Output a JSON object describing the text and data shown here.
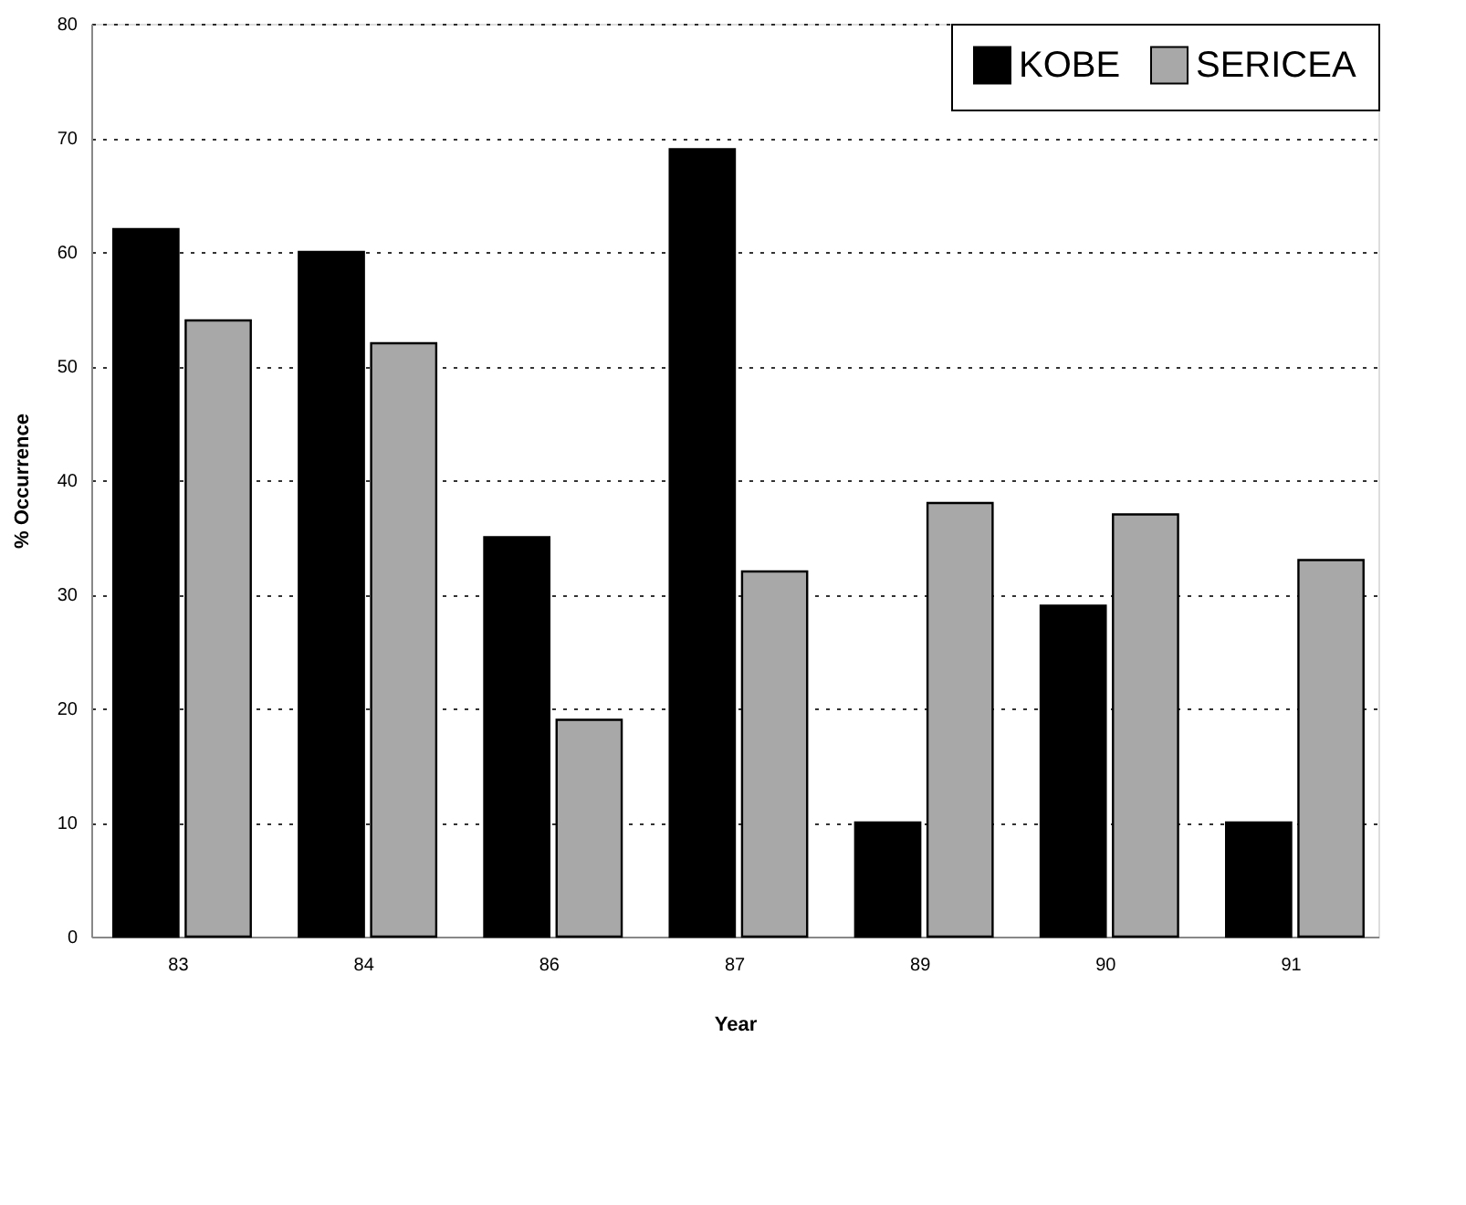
{
  "chart_data": {
    "type": "bar",
    "xlabel": "Year",
    "ylabel": "% Occurrence",
    "categories": [
      "83",
      "84",
      "86",
      "87",
      "89",
      "90",
      "91"
    ],
    "series": [
      {
        "name": "KOBE",
        "color": "#000000",
        "values": [
          62,
          60,
          35,
          69,
          10,
          29,
          10
        ]
      },
      {
        "name": "SERICEA",
        "color": "#a8a8a8",
        "values": [
          54,
          52,
          19,
          32,
          38,
          37,
          33
        ]
      }
    ],
    "ylim": [
      0,
      80
    ],
    "yticks": [
      0,
      10,
      20,
      30,
      40,
      50,
      60,
      70,
      80
    ],
    "grid": "y",
    "legend": "top right"
  }
}
